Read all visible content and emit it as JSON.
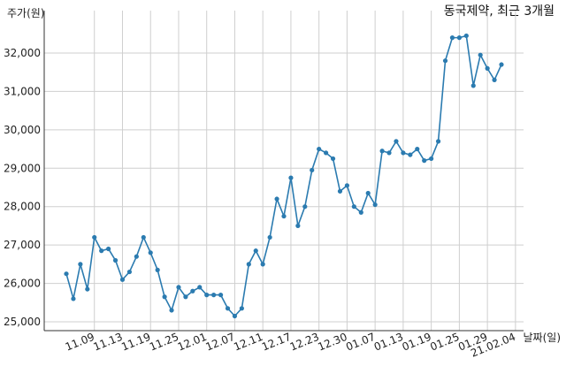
{
  "chart_data": {
    "type": "line",
    "title": "동국제약, 최근 3개월",
    "ylabel": "주가(원)",
    "xlabel": "날짜(일)",
    "ylim": [
      24900,
      32700
    ],
    "y_ticks": [
      25000,
      26000,
      27000,
      28000,
      29000,
      30000,
      31000,
      32000
    ],
    "y_tick_labels": [
      "25,000",
      "26,000",
      "27,000",
      "28,000",
      "29,000",
      "30,000",
      "31,000",
      "32,000"
    ],
    "x_tick_labels": [
      "11.09",
      "11.13",
      "11.19",
      "11.25",
      "12.01",
      "12.07",
      "12.11",
      "12.17",
      "12.23",
      "12.30",
      "01.07",
      "01.13",
      "01.19",
      "01.25",
      "01.29",
      "21.02.04"
    ],
    "x_tick_index": [
      4,
      8,
      12,
      16,
      20,
      24,
      28,
      32,
      36,
      40,
      44,
      48,
      52,
      56,
      60,
      64
    ],
    "grid": true,
    "color": "#2b7bb0",
    "series": [
      {
        "values": [
          26250,
          25600,
          26500,
          25850,
          27200,
          26850,
          26900,
          26600,
          26100,
          26300,
          26700,
          27200,
          26800,
          26350,
          25650,
          25300,
          25900,
          25650,
          25800,
          25900,
          25700,
          25700,
          25700,
          25350,
          25150,
          25350,
          26500,
          26850,
          26500,
          27200,
          28200,
          27750,
          28750,
          27500,
          28000,
          28950,
          29500,
          29400,
          29250,
          28400,
          28550,
          28000,
          27850,
          28350,
          28050,
          29450,
          29400,
          29700,
          29400,
          29350,
          29500,
          29200,
          29250,
          29700,
          31800,
          32400,
          32400,
          32450,
          31150,
          31950,
          31600,
          31300,
          31700
        ]
      }
    ]
  }
}
